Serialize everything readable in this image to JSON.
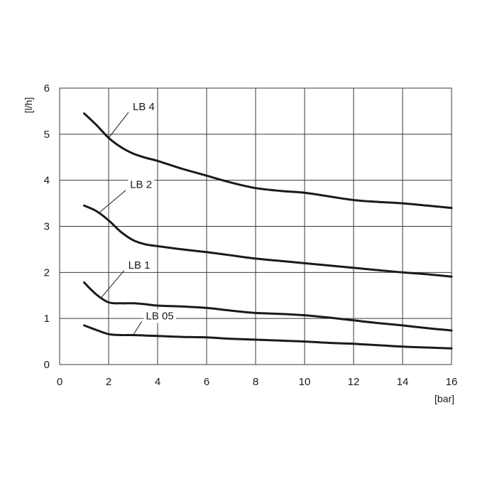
{
  "chart_data": {
    "type": "line",
    "title": "",
    "xlabel": "[bar]",
    "ylabel": "[l/h]",
    "xlim": [
      0,
      16
    ],
    "ylim": [
      0,
      6
    ],
    "x_ticks": [
      "0",
      "2",
      "4",
      "6",
      "8",
      "10",
      "12",
      "14",
      "16"
    ],
    "y_ticks": [
      "0",
      "1",
      "2",
      "3",
      "4",
      "5",
      "6"
    ],
    "grid": true,
    "series": [
      {
        "name": "LB 4",
        "x": [
          1,
          1.5,
          2,
          2.5,
          3,
          3.5,
          4,
          5,
          6,
          7,
          8,
          9,
          10,
          11,
          12,
          13,
          14,
          15,
          16
        ],
        "y": [
          5.45,
          5.2,
          4.92,
          4.72,
          4.58,
          4.49,
          4.42,
          4.25,
          4.1,
          3.95,
          3.83,
          3.77,
          3.73,
          3.65,
          3.57,
          3.53,
          3.5,
          3.45,
          3.4
        ]
      },
      {
        "name": "LB 2",
        "x": [
          1,
          1.5,
          2,
          2.5,
          3,
          3.5,
          4,
          5,
          6,
          7,
          8,
          9,
          10,
          11,
          12,
          13,
          14,
          15,
          16
        ],
        "y": [
          3.45,
          3.33,
          3.13,
          2.88,
          2.7,
          2.61,
          2.57,
          2.5,
          2.44,
          2.37,
          2.3,
          2.25,
          2.2,
          2.15,
          2.1,
          2.05,
          2.0,
          1.96,
          1.91
        ]
      },
      {
        "name": "LB 1",
        "x": [
          1,
          1.5,
          2,
          2.5,
          3,
          3.5,
          4,
          5,
          6,
          7,
          8,
          9,
          10,
          11,
          12,
          13,
          14,
          15,
          16
        ],
        "y": [
          1.78,
          1.52,
          1.35,
          1.33,
          1.33,
          1.31,
          1.28,
          1.26,
          1.23,
          1.17,
          1.12,
          1.1,
          1.07,
          1.02,
          0.96,
          0.9,
          0.85,
          0.79,
          0.74
        ]
      },
      {
        "name": "LB 05",
        "x": [
          1,
          1.5,
          2,
          2.5,
          3,
          3.5,
          4,
          5,
          6,
          7,
          8,
          9,
          10,
          11,
          12,
          13,
          14,
          15,
          16
        ],
        "y": [
          0.85,
          0.75,
          0.66,
          0.64,
          0.64,
          0.63,
          0.62,
          0.6,
          0.59,
          0.56,
          0.54,
          0.52,
          0.5,
          0.47,
          0.45,
          0.42,
          0.39,
          0.37,
          0.35
        ]
      }
    ],
    "annotations": [
      {
        "text": "LB 4",
        "series": "LB 4",
        "at_x": 2.0
      },
      {
        "text": "LB 2",
        "series": "LB 2",
        "at_x": 1.6
      },
      {
        "text": "LB 1",
        "series": "LB 1",
        "at_x": 1.7
      },
      {
        "text": "LB 05",
        "series": "LB 05",
        "at_x": 3.0
      }
    ]
  }
}
